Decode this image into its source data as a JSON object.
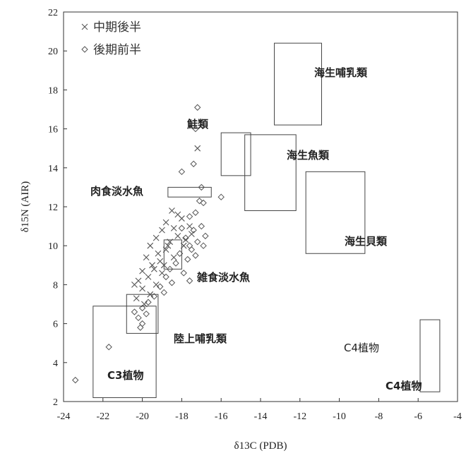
{
  "chart_data": {
    "type": "scatter",
    "xlabel": "δ13C (PDB)",
    "ylabel": "δ15N (AIR)",
    "xlim": [
      -24,
      -4
    ],
    "ylim": [
      2,
      22
    ],
    "xticks": [
      -24,
      -22,
      -20,
      -18,
      -16,
      -14,
      -12,
      -10,
      -8,
      -6,
      -4
    ],
    "yticks": [
      2,
      4,
      6,
      8,
      10,
      12,
      14,
      16,
      18,
      20,
      22
    ],
    "grid": false,
    "legend_position": "top-left",
    "series": [
      {
        "name": "中期後半",
        "marker": "x",
        "points": [
          [
            -17.2,
            15.0
          ],
          [
            -18.0,
            11.4
          ],
          [
            -18.5,
            11.8
          ],
          [
            -18.2,
            11.6
          ],
          [
            -18.8,
            11.2
          ],
          [
            -18.4,
            10.9
          ],
          [
            -17.6,
            11.0
          ],
          [
            -19.0,
            10.8
          ],
          [
            -19.3,
            10.4
          ],
          [
            -18.6,
            10.2
          ],
          [
            -17.9,
            10.0
          ],
          [
            -19.6,
            10.0
          ],
          [
            -18.8,
            9.8
          ],
          [
            -19.2,
            9.6
          ],
          [
            -19.8,
            9.4
          ],
          [
            -18.4,
            9.4
          ],
          [
            -19.5,
            9.0
          ],
          [
            -20.0,
            8.7
          ],
          [
            -19.0,
            8.6
          ],
          [
            -19.7,
            8.4
          ],
          [
            -20.2,
            8.2
          ],
          [
            -19.3,
            8.0
          ],
          [
            -20.0,
            7.8
          ],
          [
            -19.6,
            7.5
          ],
          [
            -20.3,
            7.3
          ],
          [
            -19.9,
            7.0
          ],
          [
            -17.5,
            10.6
          ],
          [
            -17.8,
            10.3
          ],
          [
            -18.2,
            10.5
          ],
          [
            -19.1,
            9.2
          ],
          [
            -18.9,
            9.0
          ],
          [
            -19.4,
            8.8
          ],
          [
            -20.4,
            8.0
          ],
          [
            -18.7,
            10.0
          ]
        ]
      },
      {
        "name": "後期前半",
        "marker": "diamond",
        "points": [
          [
            -17.2,
            17.1
          ],
          [
            -17.3,
            16.0
          ],
          [
            -17.4,
            14.2
          ],
          [
            -18.0,
            13.8
          ],
          [
            -17.0,
            13.0
          ],
          [
            -16.0,
            12.5
          ],
          [
            -17.1,
            12.3
          ],
          [
            -16.9,
            12.2
          ],
          [
            -17.3,
            11.7
          ],
          [
            -17.6,
            11.5
          ],
          [
            -17.0,
            11.0
          ],
          [
            -16.8,
            10.5
          ],
          [
            -17.4,
            10.8
          ],
          [
            -17.8,
            10.4
          ],
          [
            -17.2,
            10.2
          ],
          [
            -16.9,
            10.0
          ],
          [
            -17.5,
            9.8
          ],
          [
            -18.1,
            9.6
          ],
          [
            -17.7,
            9.3
          ],
          [
            -18.3,
            9.1
          ],
          [
            -18.6,
            8.8
          ],
          [
            -17.9,
            8.6
          ],
          [
            -18.8,
            8.4
          ],
          [
            -18.5,
            8.1
          ],
          [
            -17.6,
            8.2
          ],
          [
            -19.1,
            7.9
          ],
          [
            -18.9,
            7.6
          ],
          [
            -19.4,
            7.4
          ],
          [
            -19.7,
            7.1
          ],
          [
            -20.0,
            6.8
          ],
          [
            -20.4,
            6.6
          ],
          [
            -20.2,
            6.3
          ],
          [
            -20.0,
            6.0
          ],
          [
            -20.1,
            5.8
          ],
          [
            -19.8,
            6.5
          ],
          [
            -21.7,
            4.8
          ],
          [
            -23.4,
            3.1
          ],
          [
            -17.6,
            10.0
          ],
          [
            -18.0,
            10.9
          ],
          [
            -17.3,
            9.5
          ]
        ]
      }
    ],
    "regions": [
      {
        "label": "海生哺乳類",
        "x": [
          -13.3,
          -10.9
        ],
        "y": [
          16.2,
          20.4
        ]
      },
      {
        "label": "鮭類",
        "x": [
          -16.0,
          -14.5
        ],
        "y": [
          13.6,
          15.8
        ]
      },
      {
        "label": "海生魚類",
        "x": [
          -14.8,
          -12.2
        ],
        "y": [
          11.8,
          15.7
        ]
      },
      {
        "label": "肉食淡水魚",
        "x": [
          -18.7,
          -16.5
        ],
        "y": [
          12.5,
          13.0
        ]
      },
      {
        "label": "海生貝類",
        "x": [
          -11.7,
          -8.7
        ],
        "y": [
          9.6,
          13.8
        ]
      },
      {
        "label": "雑食淡水魚",
        "x": [
          -18.9,
          -18.0
        ],
        "y": [
          8.8,
          10.3
        ]
      },
      {
        "label": "陸上哺乳類",
        "x": [
          -20.8,
          -19.2
        ],
        "y": [
          5.5,
          7.5
        ]
      },
      {
        "label": "C3植物",
        "x": [
          -22.5,
          -19.3
        ],
        "y": [
          2.2,
          6.9
        ]
      },
      {
        "label": "C4植物",
        "x": [
          -5.9,
          -4.9
        ],
        "y": [
          2.5,
          6.2
        ]
      }
    ],
    "annotations": [
      "C4植物"
    ]
  }
}
